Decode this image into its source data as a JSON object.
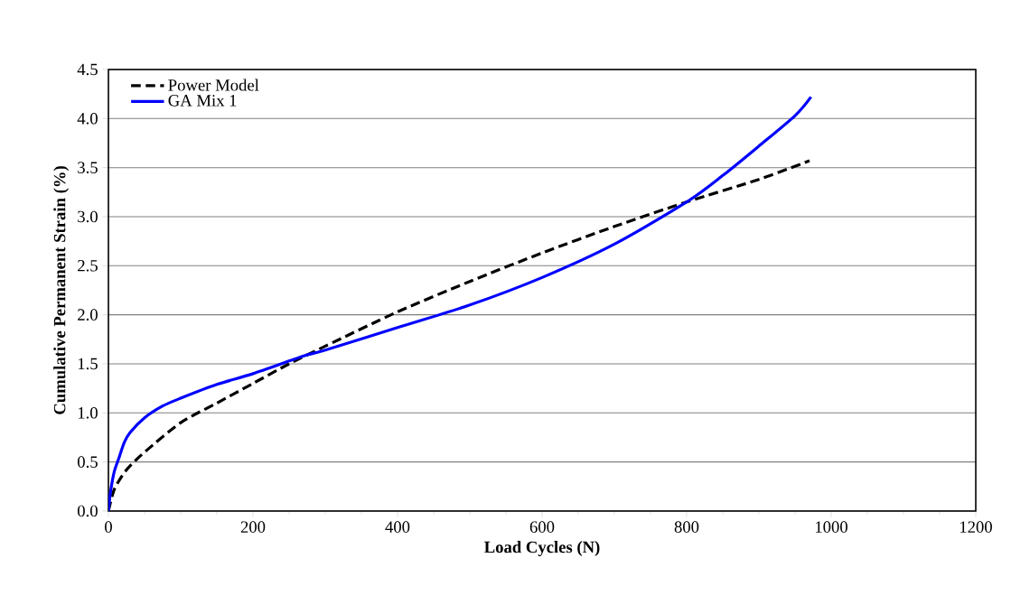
{
  "chart_data": {
    "type": "line",
    "xlabel": "Load Cycles (N)",
    "ylabel": "Cumulative Permanent Strain (%)",
    "xlim": [
      0,
      1200
    ],
    "xticks": [
      0,
      200,
      400,
      600,
      800,
      1000,
      1200
    ],
    "ylim": [
      0,
      4.5
    ],
    "yticks": [
      {
        "value": 0,
        "label": "0.0"
      },
      {
        "value": 0.5,
        "label": "0.5"
      },
      {
        "value": 1,
        "label": "1.0"
      },
      {
        "value": 1.5,
        "label": "1.5"
      },
      {
        "value": 2,
        "label": "2.0"
      },
      {
        "value": 2.5,
        "label": "2.5"
      },
      {
        "value": 3,
        "label": "3.0"
      },
      {
        "value": 3.5,
        "label": "3.5"
      },
      {
        "value": 4,
        "label": "4.0"
      },
      {
        "value": 4.5,
        "label": "4.5"
      }
    ],
    "grid": "y",
    "legend": "top left",
    "marker": "none",
    "series": [
      {
        "name": "Power Model",
        "color": "#000000",
        "line_style": "dashed",
        "x": [
          0,
          5,
          10,
          25,
          50,
          100,
          150,
          200,
          250,
          300,
          400,
          500,
          600,
          700,
          800,
          900,
          970
        ],
        "values": [
          0,
          0.15,
          0.25,
          0.42,
          0.6,
          0.9,
          1.1,
          1.3,
          1.5,
          1.68,
          2.03,
          2.34,
          2.63,
          2.9,
          3.15,
          3.38,
          3.57
        ]
      },
      {
        "name": "GA Mix 1",
        "color": "#0000ff",
        "line_style": "solid",
        "x": [
          0,
          3,
          8,
          15,
          22,
          30,
          50,
          75,
          100,
          150,
          200,
          270,
          300,
          400,
          500,
          600,
          700,
          800,
          850,
          900,
          950,
          972
        ],
        "values": [
          0,
          0.2,
          0.4,
          0.55,
          0.7,
          0.8,
          0.95,
          1.07,
          1.15,
          1.29,
          1.4,
          1.58,
          1.64,
          1.87,
          2.1,
          2.38,
          2.72,
          3.15,
          3.42,
          3.72,
          4.03,
          4.22
        ]
      }
    ]
  }
}
